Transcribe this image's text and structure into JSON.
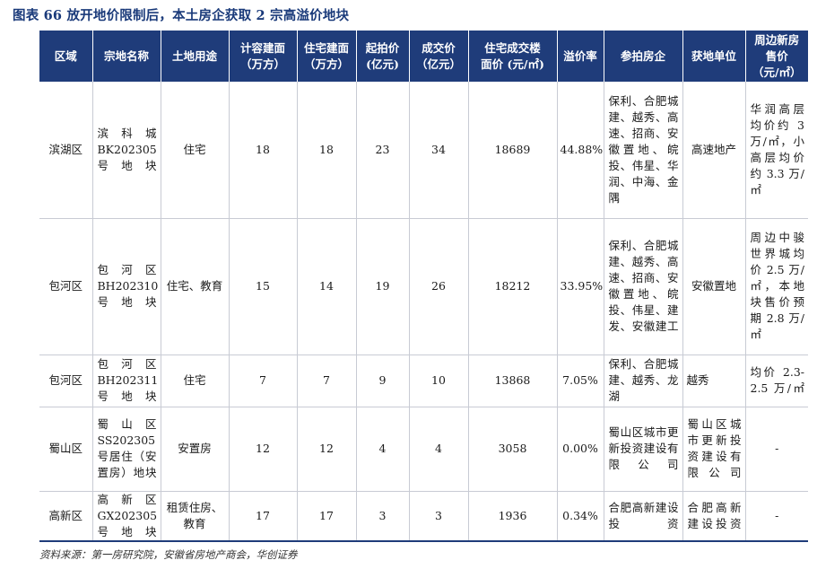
{
  "title": "图表 66  放开地价限制后，本土房企获取 2 宗高溢价地块",
  "headers": [
    [
      "区域"
    ],
    [
      "宗地名称"
    ],
    [
      "土地用途"
    ],
    [
      "计容建面",
      "（万方）"
    ],
    [
      "住宅建面",
      "（万方）"
    ],
    [
      "起拍价",
      "(亿元)"
    ],
    [
      "成交价",
      "（亿元）"
    ],
    [
      "住宅成交楼",
      "面价 (元/㎡)"
    ],
    [
      "溢价率"
    ],
    [
      "参拍房企"
    ],
    [
      "获地单位"
    ],
    [
      "周边新房",
      "售价",
      "（元/㎡）"
    ]
  ],
  "rows": [
    {
      "area": "滨湖区",
      "parcel": "滨 科 城 BK202305 号地块",
      "use": "住宅",
      "gfa": "18",
      "res_gfa": "18",
      "start_price": "23",
      "deal_price": "34",
      "floor_price": "18689",
      "premium": "44.88%",
      "bidders": "保利、合肥城建、越秀、高速、招商、安徽置地、皖投、伟星、华润、中海、金隅",
      "winner": "高速地产",
      "nearby": "华润高层均价约 3 万/㎡，小高层均价约 3.3 万/㎡"
    },
    {
      "area": "包河区",
      "parcel": "包 河 区 BH202310 号地块",
      "use": "住宅、教育",
      "gfa": "15",
      "res_gfa": "14",
      "start_price": "19",
      "deal_price": "26",
      "floor_price": "18212",
      "premium": "33.95%",
      "bidders": "保利、合肥城建、越秀、高速、招商、安徽置地、皖投、伟星、建发、安徽建工",
      "winner": "安徽置地",
      "nearby": "周边中骏世界城均价 2.5 万/㎡，本地块售价预期 2.8 万/㎡"
    },
    {
      "area": "包河区",
      "parcel": "包 河 区 BH202311 号地块",
      "use": "住宅",
      "gfa": "7",
      "res_gfa": "7",
      "start_price": "9",
      "deal_price": "10",
      "floor_price": "13868",
      "premium": "7.05%",
      "bidders": "保利、合肥城建、越秀、龙湖",
      "winner": "越秀",
      "nearby": "均价 2.3-2.5 万/㎡"
    },
    {
      "area": "蜀山区",
      "parcel": "蜀 山 区 SS202305 号居住（安置房）地块",
      "use": "安置房",
      "gfa": "12",
      "res_gfa": "12",
      "start_price": "4",
      "deal_price": "4",
      "floor_price": "3058",
      "premium": "0.00%",
      "bidders": "蜀山区城市更新投资建设有限公司",
      "winner": "蜀山区城市更新投资建设有限公司",
      "nearby": "-"
    },
    {
      "area": "高新区",
      "parcel": "高 新 区 GX202305 号地块",
      "use": "租赁住房、教育",
      "gfa": "17",
      "res_gfa": "17",
      "start_price": "3",
      "deal_price": "3",
      "floor_price": "1936",
      "premium": "0.34%",
      "bidders": "合肥高新建设投资",
      "winner": "合肥高新建设投资",
      "nearby": "-"
    }
  ],
  "source": "资料来源：第一房研究院，安徽省房地产商会，华创证券"
}
